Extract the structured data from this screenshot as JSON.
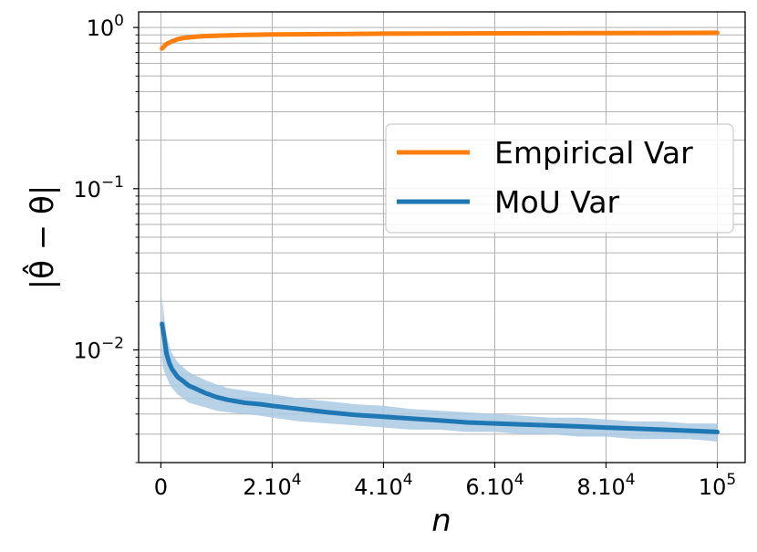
{
  "chart_data": {
    "type": "line",
    "ylog": true,
    "xlim": [
      -4000,
      105000
    ],
    "ylim": [
      0.002,
      1.25
    ],
    "xlabel": "n",
    "ylabel": "|θ̂ − θ|",
    "grid": true,
    "x_ticks": [
      {
        "value": 0,
        "base": "0",
        "exp": ""
      },
      {
        "value": 20000,
        "base": "2.10",
        "exp": "4"
      },
      {
        "value": 40000,
        "base": "4.10",
        "exp": "4"
      },
      {
        "value": 60000,
        "base": "6.10",
        "exp": "4"
      },
      {
        "value": 80000,
        "base": "8.10",
        "exp": "4"
      },
      {
        "value": 100000,
        "base": "10",
        "exp": "5"
      }
    ],
    "y_ticks": [
      {
        "value": 1,
        "base": "10",
        "exp": "0"
      },
      {
        "value": 0.1,
        "base": "10",
        "exp": "−1"
      },
      {
        "value": 0.01,
        "base": "10",
        "exp": "−2"
      }
    ],
    "legend": {
      "position": "center-right",
      "entries": [
        {
          "label": "Empirical Var",
          "color": "#ff7f0e"
        },
        {
          "label": "MoU Var",
          "color": "#1f77b4"
        }
      ]
    },
    "series": [
      {
        "name": "Empirical Var",
        "color": "#ff7f0e",
        "x": [
          200,
          1000,
          2000,
          3000,
          4000,
          6000,
          8000,
          10000,
          15000,
          20000,
          30000,
          40000,
          50000,
          60000,
          70000,
          80000,
          90000,
          100000
        ],
        "y": [
          0.74,
          0.79,
          0.82,
          0.845,
          0.86,
          0.875,
          0.885,
          0.89,
          0.9,
          0.905,
          0.91,
          0.915,
          0.918,
          0.92,
          0.922,
          0.924,
          0.925,
          0.927
        ]
      },
      {
        "name": "MoU Var",
        "color": "#1f77b4",
        "band_color": "#aac9e3",
        "x": [
          200,
          500,
          1000,
          1500,
          2000,
          3000,
          4000,
          5000,
          6000,
          8000,
          10000,
          12000,
          15000,
          18000,
          20000,
          25000,
          30000,
          35000,
          40000,
          45000,
          50000,
          55000,
          60000,
          65000,
          70000,
          75000,
          80000,
          85000,
          90000,
          95000,
          100000
        ],
        "y": [
          0.0145,
          0.0125,
          0.0095,
          0.0083,
          0.0076,
          0.0068,
          0.0064,
          0.006,
          0.0058,
          0.0054,
          0.0051,
          0.0049,
          0.0047,
          0.0046,
          0.0045,
          0.0043,
          0.0041,
          0.00395,
          0.00385,
          0.00375,
          0.00365,
          0.00355,
          0.0035,
          0.00345,
          0.0034,
          0.00335,
          0.0033,
          0.00325,
          0.0032,
          0.00315,
          0.0031
        ],
        "band_upper": [
          0.0215,
          0.017,
          0.0125,
          0.0105,
          0.0095,
          0.0084,
          0.0078,
          0.0073,
          0.007,
          0.0065,
          0.0061,
          0.0058,
          0.0056,
          0.0054,
          0.0053,
          0.005,
          0.0048,
          0.0046,
          0.0045,
          0.0043,
          0.0042,
          0.0041,
          0.004,
          0.0039,
          0.0038,
          0.0038,
          0.0037,
          0.0036,
          0.0036,
          0.0035,
          0.0035
        ],
        "band_lower": [
          0.0085,
          0.0075,
          0.0068,
          0.0062,
          0.0058,
          0.0053,
          0.005,
          0.0047,
          0.0046,
          0.0044,
          0.0042,
          0.0041,
          0.004,
          0.0039,
          0.0038,
          0.0036,
          0.0035,
          0.0034,
          0.0033,
          0.0032,
          0.0032,
          0.0031,
          0.0031,
          0.003,
          0.003,
          0.0029,
          0.0029,
          0.0028,
          0.0028,
          0.0028,
          0.0027
        ]
      }
    ]
  }
}
